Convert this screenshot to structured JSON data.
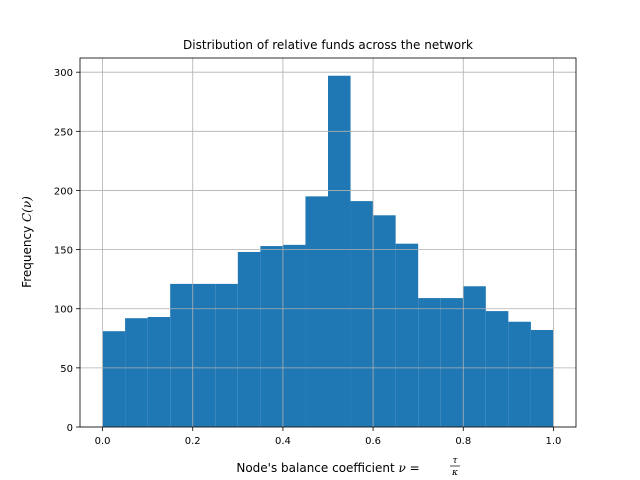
{
  "chart_data": {
    "type": "bar",
    "title": "Distribution of relative funds across the network",
    "xlabel": {
      "prefix": "Node's balance coefficient ",
      "symbol": "ν",
      "equals": " = ",
      "numerator": "τ",
      "denominator": "κ"
    },
    "ylabel": {
      "prefix": "Frequency ",
      "math": "C(ν)"
    },
    "xlim": [
      -0.05,
      1.05
    ],
    "ylim": [
      0,
      312
    ],
    "xticks": [
      0.0,
      0.2,
      0.4,
      0.6,
      0.8,
      1.0
    ],
    "xtick_labels": [
      "0.0",
      "0.2",
      "0.4",
      "0.6",
      "0.8",
      "1.0"
    ],
    "yticks": [
      0,
      50,
      100,
      150,
      200,
      250,
      300
    ],
    "ytick_labels": [
      "0",
      "50",
      "100",
      "150",
      "200",
      "250",
      "300"
    ],
    "grid": true,
    "bar_color": "#1f77b4",
    "bin_edges": [
      0.0,
      0.05,
      0.1,
      0.15,
      0.2,
      0.25,
      0.3,
      0.35,
      0.4,
      0.45,
      0.5,
      0.55,
      0.6,
      0.65,
      0.7,
      0.75,
      0.8,
      0.85,
      0.9,
      0.95,
      1.0
    ],
    "values": [
      81,
      92,
      93,
      121,
      121,
      121,
      148,
      153,
      154,
      195,
      297,
      191,
      179,
      155,
      109,
      109,
      119,
      98,
      89,
      82
    ]
  }
}
